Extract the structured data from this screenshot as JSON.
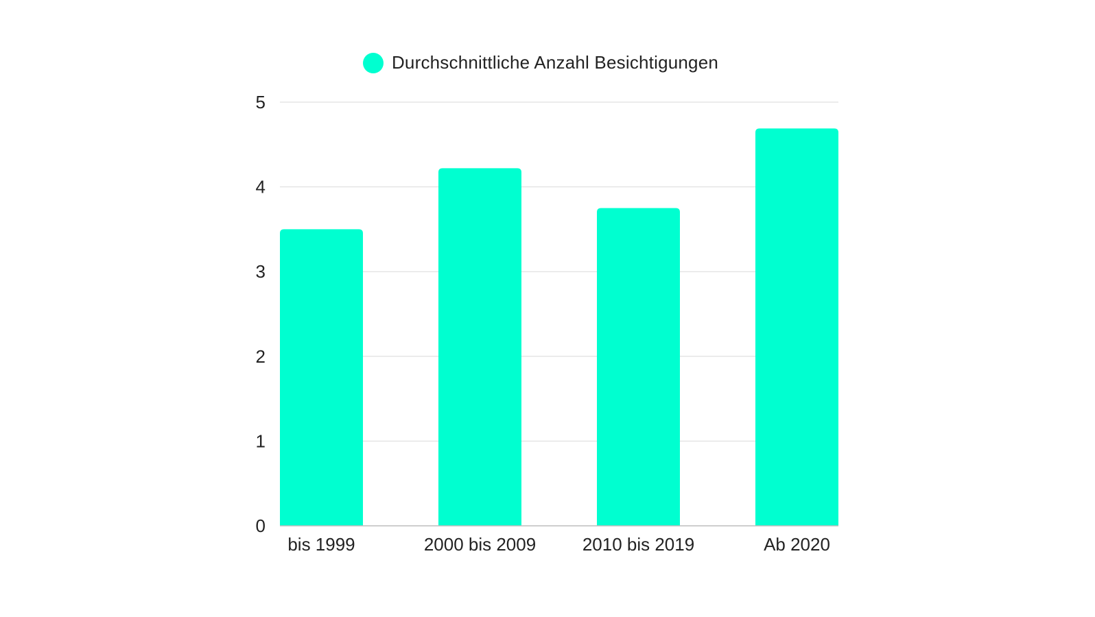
{
  "legend": {
    "label": "Durchschnittliche Anzahl Besichtigungen"
  },
  "colors": {
    "bar": "#00FFD0",
    "grid": "#d9d9d9",
    "axis": "#bdbdbd",
    "text": "#222222"
  },
  "chart_data": {
    "type": "bar",
    "categories": [
      "bis 1999",
      "2000 bis 2009",
      "2010 bis 2019",
      "Ab 2020"
    ],
    "series": [
      {
        "name": "Durchschnittliche Anzahl Besichtigungen",
        "values": [
          3.5,
          4.22,
          3.75,
          4.69
        ]
      }
    ],
    "yticks": [
      "0",
      "1",
      "2",
      "3",
      "4",
      "5"
    ],
    "ylim": [
      0,
      5
    ],
    "grid": true,
    "legend_position": "top-center",
    "xlabel": "",
    "ylabel": ""
  }
}
